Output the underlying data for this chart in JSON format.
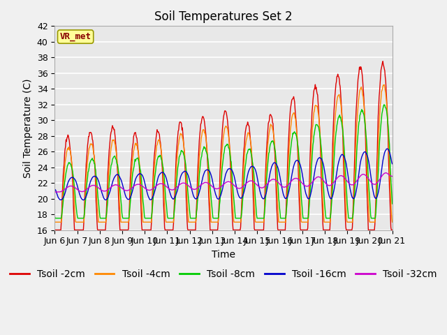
{
  "title": "Soil Temperatures Set 2",
  "xlabel": "Time",
  "ylabel": "Soil Temperature (C)",
  "ylim": [
    16,
    42
  ],
  "yticks": [
    16,
    18,
    20,
    22,
    24,
    26,
    28,
    30,
    32,
    34,
    36,
    38,
    40,
    42
  ],
  "n_days": 15,
  "xtick_labels": [
    "Jun 6",
    "Jun 7",
    "Jun 8",
    "Jun 9",
    "Jun 10",
    "Jun 11",
    "Jun 12",
    "Jun 13",
    "Jun 14",
    "Jun 15",
    "Jun 16",
    "Jun 17",
    "Jun 18",
    "Jun 19",
    "Jun 20",
    "Jun 21"
  ],
  "colors": {
    "Tsoil -2cm": "#dd0000",
    "Tsoil -4cm": "#ff8800",
    "Tsoil -8cm": "#00cc00",
    "Tsoil -16cm": "#0000cc",
    "Tsoil -32cm": "#cc00cc"
  },
  "annotation_text": "VR_met",
  "annotation_color": "#880000",
  "annotation_bg": "#ffff99",
  "fig_bg": "#f0f0f0",
  "plot_bg": "#e8e8e8",
  "grid_color": "#ffffff",
  "title_fontsize": 12,
  "axis_label_fontsize": 10,
  "tick_fontsize": 9,
  "legend_fontsize": 10
}
